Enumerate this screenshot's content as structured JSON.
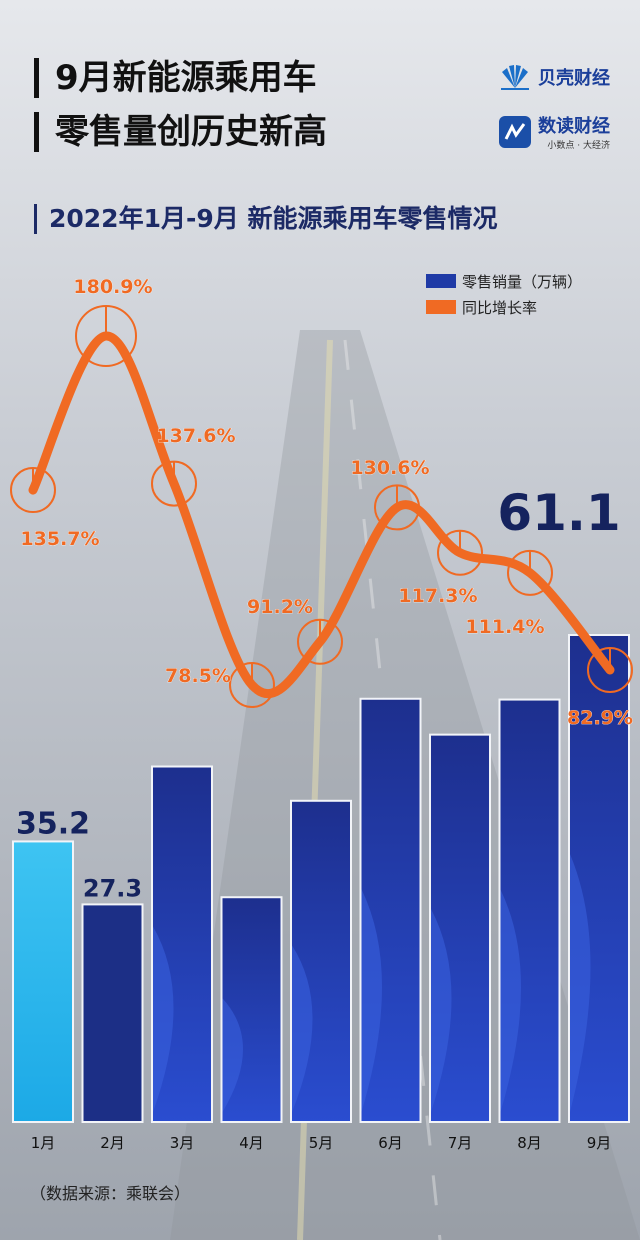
{
  "title": {
    "line1": "9月新能源乘用车",
    "line2": "零售量创历史新高"
  },
  "brands": {
    "beike": "贝壳财经",
    "shudu": "数读财经",
    "shudu_slogan": "小数点 · 大经济"
  },
  "source": "（数据来源：乘联会）",
  "chart_data": {
    "type": "bar",
    "title": "2022年1月-9月 新能源乘用车零售情况",
    "categories": [
      "1月",
      "2月",
      "3月",
      "4月",
      "5月",
      "6月",
      "7月",
      "8月",
      "9月"
    ],
    "series": [
      {
        "name": "零售销量（万辆）",
        "type": "bar",
        "values": [
          35.2,
          27.3,
          44.6,
          28.2,
          40.3,
          53.1,
          48.6,
          53.0,
          61.1
        ],
        "labels": [
          "35.2",
          "27.3",
          "",
          "",
          "",
          "",
          "",
          "",
          "61.1"
        ]
      },
      {
        "name": "同比增长率",
        "type": "line",
        "values": [
          135.7,
          180.9,
          137.6,
          78.5,
          91.2,
          130.6,
          117.3,
          111.4,
          82.9
        ],
        "labels": [
          "135.7%",
          "180.9%",
          "137.6%",
          "78.5%",
          "91.2%",
          "130.6%",
          "117.3%",
          "111.4%",
          "82.9%"
        ]
      }
    ],
    "legend_position": "top-right",
    "grid": false,
    "colors": {
      "bar": "#1f3aa6",
      "bar_highlight": "#2fb6ea",
      "line": "#f06a23",
      "label_dark": "#15235e"
    }
  }
}
